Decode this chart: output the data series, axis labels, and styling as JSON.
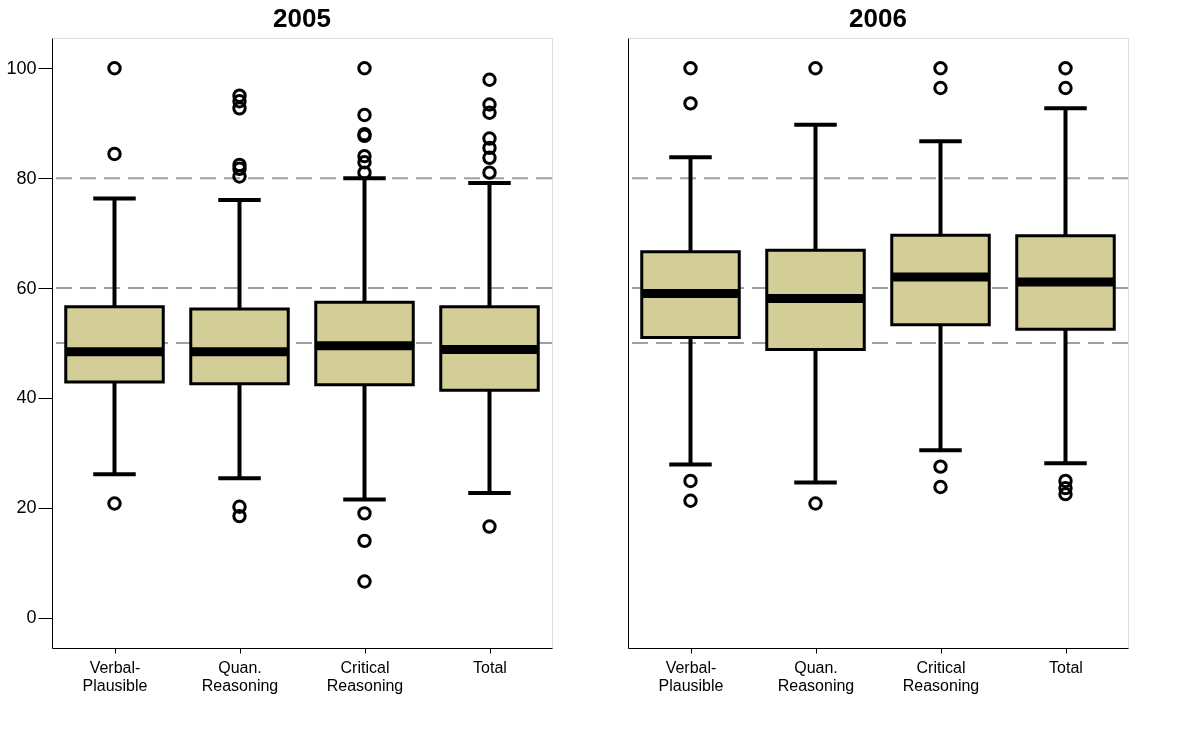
{
  "chart_data": [
    {
      "type": "box",
      "title": "2005",
      "categories": [
        "Verbal-\nPlausible",
        "Quan.\nReasoning",
        "Critical\nReasoning",
        "Total"
      ],
      "color": "#d3cd98",
      "boxes": [
        {
          "low": 26.1,
          "q1": 42.9,
          "median": 48.4,
          "q3": 56.6,
          "high": 76.3,
          "outliers": [
            100,
            84.4,
            20.8
          ]
        },
        {
          "low": 25.4,
          "q1": 42.6,
          "median": 48.4,
          "q3": 56.2,
          "high": 76.0,
          "outliers": [
            95,
            94,
            92.7,
            82.4,
            81.7,
            80.3,
            20.2,
            18.5
          ]
        },
        {
          "low": 21.5,
          "q1": 42.4,
          "median": 49.5,
          "q3": 57.4,
          "high": 80,
          "outliers": [
            100,
            91.5,
            88,
            87.7,
            84,
            82.9,
            81,
            19,
            14,
            6.6
          ]
        },
        {
          "low": 22.7,
          "q1": 41.4,
          "median": 48.8,
          "q3": 56.6,
          "high": 79.1,
          "outliers": [
            97.9,
            93.4,
            91.9,
            87.2,
            85.5,
            83.7,
            81,
            16.6
          ]
        }
      ],
      "ylim": [
        -5.5,
        105.5
      ],
      "yticks": [
        0,
        20,
        40,
        60,
        80,
        100
      ],
      "grid": false,
      "ref_lines": [
        {
          "axis": "y",
          "value": 50,
          "color": "#a0a0a0",
          "line_style": "dashed"
        },
        {
          "axis": "y",
          "value": 60,
          "color": "#a0a0a0",
          "line_style": "dashed"
        },
        {
          "axis": "y",
          "value": 80,
          "color": "#a0a0a0",
          "line_style": "dashed"
        }
      ]
    },
    {
      "type": "box",
      "title": "2006",
      "categories": [
        "Verbal-\nPlausible",
        "Quan.\nReasoning",
        "Critical\nReasoning",
        "Total"
      ],
      "color": "#d3cd98",
      "boxes": [
        {
          "low": 27.9,
          "q1": 51,
          "median": 59,
          "q3": 66.6,
          "high": 83.8,
          "outliers": [
            100,
            93.6,
            24.9,
            21.3
          ]
        },
        {
          "low": 24.6,
          "q1": 48.8,
          "median": 58.1,
          "q3": 66.9,
          "high": 89.7,
          "outliers": [
            100,
            20.8
          ]
        },
        {
          "low": 30.5,
          "q1": 53.3,
          "median": 62,
          "q3": 69.6,
          "high": 86.7,
          "outliers": [
            100,
            96.4,
            27.5,
            23.8
          ]
        },
        {
          "low": 28.1,
          "q1": 52.5,
          "median": 61.1,
          "q3": 69.5,
          "high": 92.7,
          "outliers": [
            100,
            96.4,
            24.9,
            23.6,
            22.5
          ]
        }
      ],
      "ylim": [
        -5.5,
        105.5
      ],
      "yticks": [
        0,
        20,
        40,
        60,
        80,
        100
      ],
      "grid": false,
      "tick_labels": "x",
      "ref_lines": [
        {
          "axis": "y",
          "value": 50,
          "color": "#a0a0a0",
          "line_style": "dashed"
        },
        {
          "axis": "y",
          "value": 60,
          "color": "#a0a0a0",
          "line_style": "dashed"
        },
        {
          "axis": "y",
          "value": 80,
          "color": "#a0a0a0",
          "line_style": "dashed"
        }
      ]
    }
  ]
}
